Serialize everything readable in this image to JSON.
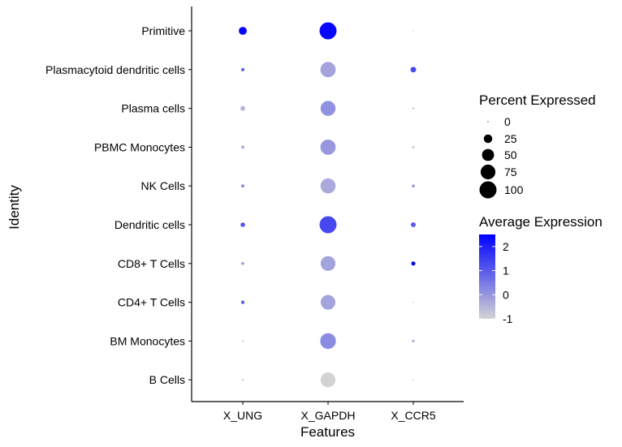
{
  "chart_data": {
    "type": "dotplot",
    "xlabel": "Features",
    "ylabel": "Identity",
    "categories_x": [
      "X_UNG",
      "X_GAPDH",
      "X_CCR5"
    ],
    "categories_y": [
      "Primitive",
      "Plasmacytoid dendritic cells",
      "Plasma cells",
      "PBMC Monocytes",
      "NK Cells",
      "Dendritic cells",
      "CD8+ T Cells",
      "CD4+ T Cells",
      "BM Monocytes",
      "B Cells"
    ],
    "points": [
      {
        "identity": "Primitive",
        "feature": "X_UNG",
        "pct_exp": 22,
        "avg_exp": 2.4
      },
      {
        "identity": "Primitive",
        "feature": "X_GAPDH",
        "pct_exp": 100,
        "avg_exp": 2.4
      },
      {
        "identity": "Primitive",
        "feature": "X_CCR5",
        "pct_exp": 0.5,
        "avg_exp": -0.8
      },
      {
        "identity": "Plasmacytoid dendritic cells",
        "feature": "X_UNG",
        "pct_exp": 4,
        "avg_exp": 0.9
      },
      {
        "identity": "Plasmacytoid dendritic cells",
        "feature": "X_GAPDH",
        "pct_exp": 80,
        "avg_exp": -0.2
      },
      {
        "identity": "Plasmacytoid dendritic cells",
        "feature": "X_CCR5",
        "pct_exp": 11,
        "avg_exp": 1.3
      },
      {
        "identity": "Plasma cells",
        "feature": "X_UNG",
        "pct_exp": 8,
        "avg_exp": -0.5
      },
      {
        "identity": "Plasma cells",
        "feature": "X_GAPDH",
        "pct_exp": 77,
        "avg_exp": 0.1
      },
      {
        "identity": "Plasma cells",
        "feature": "X_CCR5",
        "pct_exp": 1,
        "avg_exp": -0.5
      },
      {
        "identity": "PBMC Monocytes",
        "feature": "X_UNG",
        "pct_exp": 4,
        "avg_exp": -0.4
      },
      {
        "identity": "PBMC Monocytes",
        "feature": "X_GAPDH",
        "pct_exp": 80,
        "avg_exp": 0.0
      },
      {
        "identity": "PBMC Monocytes",
        "feature": "X_CCR5",
        "pct_exp": 1.5,
        "avg_exp": -0.5
      },
      {
        "identity": "NK Cells",
        "feature": "X_UNG",
        "pct_exp": 3.5,
        "avg_exp": 0.2
      },
      {
        "identity": "NK Cells",
        "feature": "X_GAPDH",
        "pct_exp": 78,
        "avg_exp": -0.3
      },
      {
        "identity": "NK Cells",
        "feature": "X_CCR5",
        "pct_exp": 3,
        "avg_exp": 0.0
      },
      {
        "identity": "Dendritic cells",
        "feature": "X_UNG",
        "pct_exp": 7,
        "avg_exp": 1.1
      },
      {
        "identity": "Dendritic cells",
        "feature": "X_GAPDH",
        "pct_exp": 100,
        "avg_exp": 1.3
      },
      {
        "identity": "Dendritic cells",
        "feature": "X_CCR5",
        "pct_exp": 8,
        "avg_exp": 1.0
      },
      {
        "identity": "CD8+ T Cells",
        "feature": "X_UNG",
        "pct_exp": 3,
        "avg_exp": -0.1
      },
      {
        "identity": "CD8+ T Cells",
        "feature": "X_GAPDH",
        "pct_exp": 75,
        "avg_exp": -0.2
      },
      {
        "identity": "CD8+ T Cells",
        "feature": "X_CCR5",
        "pct_exp": 6,
        "avg_exp": 2.4
      },
      {
        "identity": "CD4+ T Cells",
        "feature": "X_UNG",
        "pct_exp": 4,
        "avg_exp": 1.0
      },
      {
        "identity": "CD4+ T Cells",
        "feature": "X_GAPDH",
        "pct_exp": 74,
        "avg_exp": -0.2
      },
      {
        "identity": "CD4+ T Cells",
        "feature": "X_CCR5",
        "pct_exp": 0.5,
        "avg_exp": -0.8
      },
      {
        "identity": "BM Monocytes",
        "feature": "X_UNG",
        "pct_exp": 0.8,
        "avg_exp": -0.6
      },
      {
        "identity": "BM Monocytes",
        "feature": "X_GAPDH",
        "pct_exp": 85,
        "avg_exp": 0.2
      },
      {
        "identity": "BM Monocytes",
        "feature": "X_CCR5",
        "pct_exp": 2,
        "avg_exp": -0.1
      },
      {
        "identity": "B Cells",
        "feature": "X_UNG",
        "pct_exp": 1,
        "avg_exp": -0.6
      },
      {
        "identity": "B Cells",
        "feature": "X_GAPDH",
        "pct_exp": 76,
        "avg_exp": -1.0
      },
      {
        "identity": "B Cells",
        "feature": "X_CCR5",
        "pct_exp": 0.5,
        "avg_exp": -0.8
      }
    ],
    "legend_size": {
      "title": "Percent Expressed",
      "labels": [
        "0",
        "25",
        "50",
        "75",
        "100"
      ],
      "values": [
        0,
        25,
        50,
        75,
        100
      ]
    },
    "legend_color": {
      "title": "Average Expression",
      "labels": [
        "2",
        "1",
        "0",
        "-1"
      ],
      "values": [
        2,
        1,
        0,
        -1
      ],
      "range": [
        -1,
        2.5
      ],
      "low_color": "#d3d3d3",
      "high_color": "#0000ff"
    },
    "grid": false
  }
}
